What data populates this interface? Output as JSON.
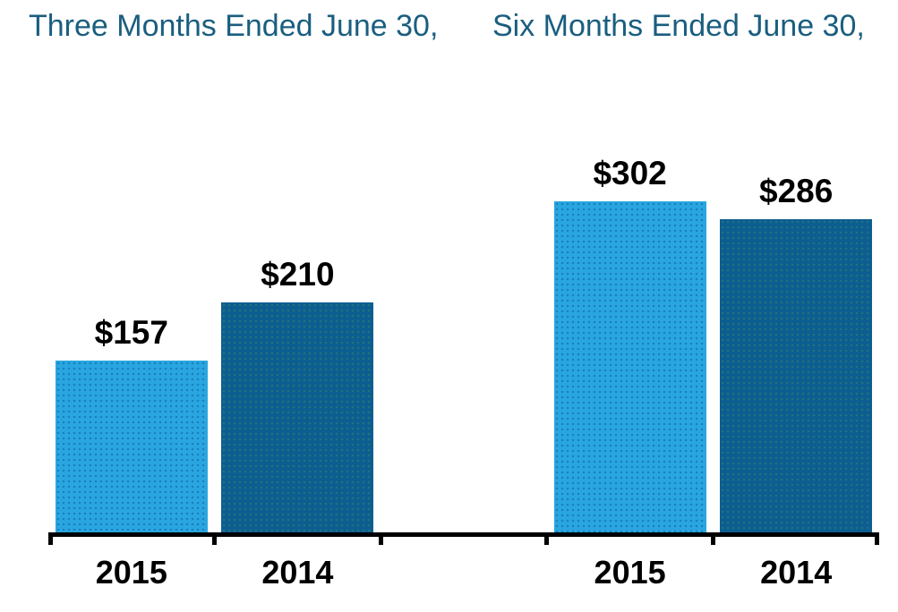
{
  "chart_data": {
    "type": "bar",
    "groups": [
      {
        "title": "Three Months Ended June 30,",
        "categories": [
          "2015",
          "2014"
        ],
        "values": [
          157,
          210
        ],
        "value_labels": [
          "$157",
          "$210"
        ]
      },
      {
        "title": "Six Months Ended June 30,",
        "categories": [
          "2015",
          "2014"
        ],
        "values": [
          302,
          286
        ],
        "value_labels": [
          "$302",
          "$286"
        ]
      }
    ],
    "value_prefix": "$",
    "ylim": [
      0,
      400
    ],
    "gridlines": false,
    "y_axis_visible": false,
    "legend_position": "none",
    "colors": {
      "series_2015": "#29A6E0",
      "series_2014": "#0C5E91",
      "value_label": "#000000",
      "category_label": "#000000",
      "group_title": "#1A5E7F",
      "axis": "#000000"
    }
  }
}
